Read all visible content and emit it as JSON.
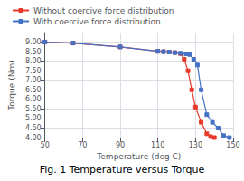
{
  "chart_data": {
    "type": "line",
    "title": "Fig. 1 Temperature versus Torque",
    "xlabel": "Temperature (deg C)",
    "ylabel": "Torque (Nm)",
    "xlim": [
      50,
      150
    ],
    "ylim": [
      4.0,
      9.5
    ],
    "xticks": [
      50,
      70,
      90,
      110,
      130,
      150
    ],
    "yticks": [
      {
        "value": 4.0,
        "label": "4.00"
      },
      {
        "value": 4.5,
        "label": "4.50"
      },
      {
        "value": 5.0,
        "label": "5.00"
      },
      {
        "value": 5.5,
        "label": "5.50"
      },
      {
        "value": 6.0,
        "label": "6.00"
      },
      {
        "value": 6.5,
        "label": "6.50"
      },
      {
        "value": 7.0,
        "label": "7.00"
      },
      {
        "value": 7.5,
        "label": "7.50"
      },
      {
        "value": 8.0,
        "label": "8.00"
      },
      {
        "value": 8.5,
        "label": "8.50"
      },
      {
        "value": 9.0,
        "label": "9.00"
      }
    ],
    "grid": true,
    "legend": "top",
    "series": [
      {
        "name": "Without coercive force distribution",
        "color": "#e8392a",
        "marker": "square",
        "line_style": "solid",
        "x": [
          50,
          65,
          90,
          110,
          113,
          116,
          119,
          122,
          124,
          126,
          128,
          130,
          133,
          136,
          138,
          140
        ],
        "values": [
          9.0,
          8.95,
          8.75,
          8.52,
          8.5,
          8.48,
          8.45,
          8.4,
          8.1,
          7.5,
          6.5,
          5.6,
          4.8,
          4.2,
          4.05,
          4.0
        ]
      },
      {
        "name": "With coercive force distribution",
        "color": "#4472c4",
        "marker": "square",
        "line_style": "solid",
        "x": [
          50,
          65,
          90,
          110,
          113,
          116,
          119,
          122,
          125,
          127,
          129,
          131,
          133,
          136,
          139,
          142,
          145,
          148
        ],
        "values": [
          9.0,
          8.95,
          8.75,
          8.52,
          8.5,
          8.48,
          8.45,
          8.42,
          8.38,
          8.35,
          8.1,
          7.8,
          6.5,
          5.2,
          4.8,
          4.5,
          4.1,
          4.0
        ]
      }
    ]
  }
}
